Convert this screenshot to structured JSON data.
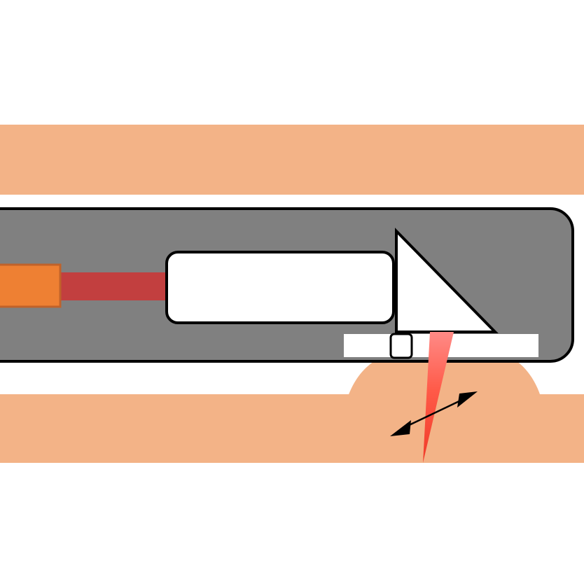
{
  "diagram": {
    "colors": {
      "background": "#ffffff",
      "tissue": "#f3b387",
      "probe_housing": "#808080",
      "outline": "#000000",
      "fiber_source": "#ee8033",
      "fiber_source_border": "#c0622a",
      "beam": "#c23f3f",
      "lens": "#ffffff",
      "prism": "#ffffff",
      "window": "#ffffff",
      "output_beam": "#ff5040",
      "arrow": "#000000"
    },
    "components": [
      {
        "id": "tissue-upper",
        "icon": "tissue-layer"
      },
      {
        "id": "tissue-lower",
        "icon": "tissue-layer-with-bulge"
      },
      {
        "id": "probe-housing",
        "icon": "rounded-capsule"
      },
      {
        "id": "fiber-source",
        "icon": "rectangle"
      },
      {
        "id": "collimated-beam",
        "icon": "beam-band"
      },
      {
        "id": "lens-block",
        "icon": "rounded-rectangle"
      },
      {
        "id": "reflecting-prism",
        "icon": "right-triangle"
      },
      {
        "id": "optical-window",
        "icon": "white-strip"
      },
      {
        "id": "detector-element",
        "icon": "small-square"
      },
      {
        "id": "focused-output-beam",
        "icon": "converging-wedge"
      },
      {
        "id": "scan-direction-arrow",
        "icon": "double-headed-arrow"
      }
    ]
  }
}
